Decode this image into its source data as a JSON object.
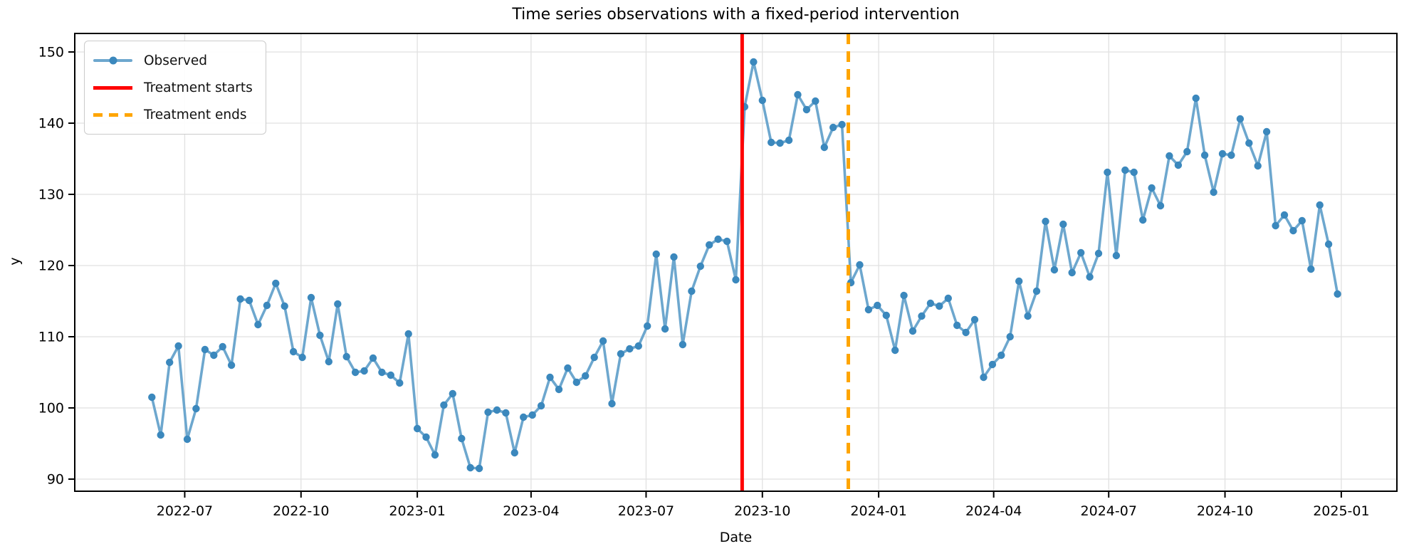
{
  "chart_data": {
    "type": "line",
    "title": "Time series observations with a fixed-period intervention",
    "xlabel": "Date",
    "ylabel": "y",
    "grid": true,
    "legend_position": "upper-left",
    "background_color": "#ffffff",
    "xlim": [
      "2022-04-05",
      "2025-02-14"
    ],
    "ylim": [
      88.3,
      152.6
    ],
    "x_start_date": "2022-06-05",
    "x_step_days": 7,
    "x_ticks": [
      {
        "label": "2022-07",
        "date": "2022-07-01"
      },
      {
        "label": "2022-10",
        "date": "2022-10-01"
      },
      {
        "label": "2023-01",
        "date": "2023-01-01"
      },
      {
        "label": "2023-04",
        "date": "2023-04-01"
      },
      {
        "label": "2023-07",
        "date": "2023-07-01"
      },
      {
        "label": "2023-10",
        "date": "2023-10-01"
      },
      {
        "label": "2024-01",
        "date": "2024-01-01"
      },
      {
        "label": "2024-04",
        "date": "2024-04-01"
      },
      {
        "label": "2024-07",
        "date": "2024-07-01"
      },
      {
        "label": "2024-10",
        "date": "2024-10-01"
      },
      {
        "label": "2025-01",
        "date": "2025-01-01"
      }
    ],
    "y_ticks": [
      90,
      100,
      110,
      120,
      130,
      140,
      150
    ],
    "series": [
      {
        "name": "Observed",
        "color": "#6da7ce",
        "marker_color": "#3b88bd",
        "marker": "o",
        "values": [
          101.5,
          96.2,
          106.4,
          108.7,
          95.6,
          99.9,
          108.2,
          107.4,
          108.6,
          106.0,
          115.3,
          115.1,
          111.7,
          114.4,
          117.5,
          114.3,
          107.9,
          107.1,
          115.5,
          110.2,
          106.5,
          114.6,
          107.2,
          105.0,
          105.2,
          107.0,
          105.0,
          104.6,
          103.5,
          110.4,
          97.1,
          95.9,
          93.4,
          100.4,
          102.0,
          95.7,
          91.6,
          91.5,
          99.4,
          99.7,
          99.3,
          93.7,
          98.7,
          99.0,
          100.3,
          104.3,
          102.6,
          105.6,
          103.6,
          104.5,
          107.1,
          109.4,
          100.6,
          107.6,
          108.3,
          108.7,
          111.5,
          121.6,
          111.1,
          121.2,
          108.9,
          116.4,
          119.9,
          122.9,
          123.7,
          123.4,
          118.0,
          142.3,
          148.6,
          143.2,
          137.3,
          137.2,
          137.6,
          144.0,
          141.9,
          143.1,
          136.6,
          139.4,
          139.8,
          117.6,
          120.1,
          113.8,
          114.4,
          113.0,
          108.1,
          115.8,
          110.8,
          112.9,
          114.7,
          114.3,
          115.4,
          111.6,
          110.6,
          112.4,
          104.3,
          106.1,
          107.4,
          110.0,
          117.8,
          112.9,
          116.4,
          126.2,
          119.4,
          125.8,
          119.0,
          121.8,
          118.4,
          121.7,
          133.1,
          121.4,
          133.4,
          133.1,
          126.4,
          130.9,
          128.4,
          135.4,
          134.1,
          136.0,
          143.5,
          135.5,
          130.3,
          135.7,
          135.5,
          140.6,
          137.2,
          134.0,
          138.8,
          125.6,
          127.1,
          124.9,
          126.3,
          119.5,
          128.5,
          123.0,
          116.0
        ]
      }
    ],
    "vlines": [
      {
        "key": "treatment-start",
        "label": "Treatment starts",
        "date": "2023-09-15",
        "color": "#ff0000",
        "style": "solid"
      },
      {
        "key": "treatment-end",
        "label": "Treatment ends",
        "date": "2023-12-08",
        "color": "#ffa500",
        "style": "dashed"
      }
    ],
    "legend": [
      {
        "label": "Observed",
        "color": "#6da7ce",
        "marker_color": "#3b88bd",
        "style": "line-marker"
      },
      {
        "label": "Treatment starts",
        "color": "#ff0000",
        "style": "solid"
      },
      {
        "label": "Treatment ends",
        "color": "#ffa500",
        "style": "dashed"
      }
    ]
  }
}
